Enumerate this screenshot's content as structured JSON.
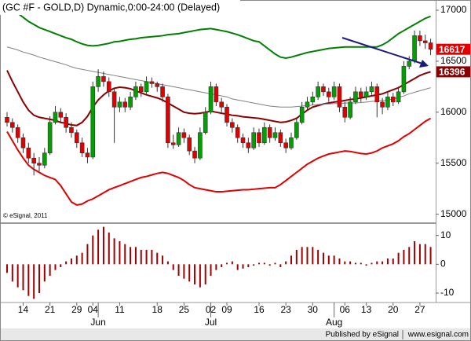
{
  "title": "(GC #F - GOLD,D) Dynamic,0:00-24:00 (Delayed)",
  "footer": [
    "Published by eSignal",
    "www.esignal.com"
  ],
  "chart_data": [
    {
      "type": "candlestick",
      "watermark": "© eSignal, 2011",
      "up_color": "#00a000",
      "down_color": "#e00000",
      "ylim": [
        14920,
        17100
      ],
      "yticks": [
        15000,
        15500,
        16000,
        16500,
        17000
      ],
      "categories": [
        null,
        null,
        null,
        "14",
        null,
        null,
        null,
        null,
        "21",
        null,
        null,
        null,
        null,
        "29",
        null,
        null,
        "04",
        null,
        null,
        null,
        null,
        "11",
        null,
        null,
        null,
        null,
        null,
        null,
        "18",
        null,
        null,
        null,
        null,
        "25",
        null,
        null,
        null,
        null,
        "02",
        null,
        null,
        "09",
        null,
        null,
        null,
        null,
        null,
        "16",
        null,
        null,
        null,
        null,
        "23",
        null,
        null,
        null,
        null,
        "30",
        null,
        null,
        null,
        null,
        null,
        "06",
        null,
        null,
        null,
        "13",
        null,
        null,
        null,
        null,
        "20",
        null,
        null,
        null,
        null,
        "27",
        null,
        null
      ],
      "months": [
        null,
        null,
        null,
        null,
        null,
        null,
        null,
        null,
        null,
        null,
        null,
        null,
        null,
        null,
        null,
        null,
        null,
        "Jun",
        null,
        null,
        null,
        null,
        null,
        null,
        null,
        null,
        null,
        null,
        null,
        null,
        null,
        null,
        null,
        null,
        null,
        null,
        null,
        null,
        "Jul",
        null,
        null,
        null,
        null,
        null,
        null,
        null,
        null,
        null,
        null,
        null,
        null,
        null,
        null,
        null,
        null,
        null,
        null,
        null,
        null,
        null,
        null,
        "Aug",
        null,
        null,
        null,
        null,
        null,
        null,
        null,
        null,
        null,
        null,
        null,
        null,
        null,
        null,
        null,
        null,
        null,
        null
      ],
      "ohlc": [
        [
          15950,
          16000,
          15860,
          15900
        ],
        [
          15900,
          15940,
          15800,
          15850
        ],
        [
          15850,
          15880,
          15700,
          15750
        ],
        [
          15750,
          15790,
          15600,
          15650
        ],
        [
          15650,
          15700,
          15500,
          15550
        ],
        [
          15550,
          15600,
          15380,
          15500
        ],
        [
          15500,
          15560,
          15420,
          15480
        ],
        [
          15480,
          15650,
          15450,
          15600
        ],
        [
          15600,
          15960,
          15580,
          15900
        ],
        [
          15900,
          16060,
          15880,
          16000
        ],
        [
          16000,
          16040,
          15900,
          15950
        ],
        [
          15950,
          15990,
          15800,
          15850
        ],
        [
          15850,
          15900,
          15750,
          15800
        ],
        [
          15800,
          15830,
          15650,
          15700
        ],
        [
          15700,
          15750,
          15560,
          15600
        ],
        [
          15600,
          15650,
          15500,
          15560
        ],
        [
          15560,
          16300,
          15540,
          16250
        ],
        [
          16250,
          16420,
          16200,
          16350
        ],
        [
          16350,
          16400,
          16250,
          16300
        ],
        [
          16300,
          16340,
          16150,
          16200
        ],
        [
          16200,
          16240,
          15700,
          16050
        ],
        [
          16050,
          16150,
          16000,
          16100
        ],
        [
          16100,
          16140,
          16000,
          16050
        ],
        [
          16050,
          16200,
          16020,
          16150
        ],
        [
          16150,
          16300,
          16120,
          16250
        ],
        [
          16250,
          16280,
          16150,
          16200
        ],
        [
          16200,
          16350,
          16180,
          16300
        ],
        [
          16300,
          16340,
          16240,
          16280
        ],
        [
          16280,
          16300,
          16200,
          16250
        ],
        [
          16250,
          16280,
          16100,
          16150
        ],
        [
          16150,
          16180,
          15650,
          15700
        ],
        [
          15700,
          15780,
          15640,
          15680
        ],
        [
          15680,
          15850,
          15660,
          15800
        ],
        [
          15800,
          15840,
          15700,
          15750
        ],
        [
          15750,
          15780,
          15580,
          15620
        ],
        [
          15620,
          15660,
          15500,
          15550
        ],
        [
          15550,
          15850,
          15530,
          15800
        ],
        [
          15800,
          16050,
          15780,
          16000
        ],
        [
          16000,
          16300,
          15980,
          16250
        ],
        [
          16250,
          16280,
          16060,
          16100
        ],
        [
          16100,
          16140,
          16000,
          16050
        ],
        [
          16050,
          16080,
          15860,
          15900
        ],
        [
          15900,
          15940,
          15800,
          15850
        ],
        [
          15850,
          15880,
          15700,
          15750
        ],
        [
          15750,
          15790,
          15650,
          15700
        ],
        [
          15700,
          15750,
          15600,
          15650
        ],
        [
          15650,
          15850,
          15630,
          15800
        ],
        [
          15800,
          15840,
          15660,
          15700
        ],
        [
          15700,
          15900,
          15680,
          15850
        ],
        [
          15850,
          15880,
          15700,
          15750
        ],
        [
          15750,
          15850,
          15720,
          15800
        ],
        [
          15800,
          15830,
          15660,
          15700
        ],
        [
          15700,
          15740,
          15600,
          15650
        ],
        [
          15650,
          15800,
          15630,
          15750
        ],
        [
          15750,
          15950,
          15730,
          15900
        ],
        [
          15900,
          16100,
          15880,
          16050
        ],
        [
          16050,
          16150,
          16020,
          16100
        ],
        [
          16100,
          16200,
          16070,
          16150
        ],
        [
          16150,
          16300,
          16120,
          16250
        ],
        [
          16250,
          16280,
          16160,
          16200
        ],
        [
          16200,
          16240,
          16100,
          16150
        ],
        [
          16150,
          16300,
          16120,
          16250
        ],
        [
          16250,
          16280,
          16000,
          16050
        ],
        [
          16050,
          16100,
          15900,
          15950
        ],
        [
          15950,
          16150,
          15930,
          16100
        ],
        [
          16100,
          16250,
          16080,
          16200
        ],
        [
          16200,
          16240,
          16100,
          16150
        ],
        [
          16150,
          16250,
          16120,
          16200
        ],
        [
          16200,
          16300,
          16170,
          16250
        ],
        [
          16250,
          16280,
          15950,
          16100
        ],
        [
          16100,
          16140,
          15980,
          16050
        ],
        [
          16050,
          16200,
          16020,
          16150
        ],
        [
          16150,
          16190,
          16060,
          16100
        ],
        [
          16100,
          16250,
          16080,
          16200
        ],
        [
          16200,
          16500,
          16180,
          16450
        ],
        [
          16450,
          16550,
          16420,
          16500
        ],
        [
          16500,
          16800,
          16480,
          16750
        ],
        [
          16750,
          16800,
          16650,
          16700
        ],
        [
          16700,
          16760,
          16620,
          16680
        ],
        [
          16680,
          16720,
          16560,
          16617
        ]
      ],
      "lines": [
        {
          "color": "#008000",
          "values": [
            17045,
            17010,
            16970,
            16930,
            16890,
            16860,
            16830,
            16810,
            16790,
            16770,
            16750,
            16730,
            16715,
            16690,
            16670,
            16655,
            16650,
            16655,
            16665,
            16675,
            16690,
            16695,
            16705,
            16715,
            16720,
            16730,
            16735,
            16740,
            16745,
            16750,
            16760,
            16765,
            16770,
            16780,
            16790,
            16800,
            16810,
            16815,
            16820,
            16810,
            16800,
            16790,
            16775,
            16760,
            16740,
            16720,
            16700,
            16690,
            16650,
            16610,
            16570,
            16540,
            16530,
            16540,
            16555,
            16570,
            16585,
            16595,
            16605,
            16615,
            16625,
            16630,
            16635,
            16640,
            16640,
            16640,
            16640,
            16640,
            16640,
            16640,
            16660,
            16690,
            16730,
            16770,
            16800,
            16830,
            16860,
            16890,
            16920,
            16940
          ]
        },
        {
          "color": "#e00000",
          "values": [
            15810,
            15720,
            15630,
            15550,
            15480,
            15440,
            15410,
            15380,
            15360,
            15340,
            15280,
            15200,
            15120,
            15090,
            15100,
            15130,
            15150,
            15180,
            15210,
            15240,
            15260,
            15280,
            15300,
            15320,
            15340,
            15360,
            15370,
            15385,
            15400,
            15410,
            15400,
            15380,
            15360,
            15330,
            15290,
            15260,
            15250,
            15240,
            15230,
            15220,
            15220,
            15225,
            15230,
            15235,
            15240,
            15240,
            15245,
            15250,
            15255,
            15260,
            15260,
            15290,
            15330,
            15370,
            15410,
            15450,
            15490,
            15520,
            15550,
            15570,
            15590,
            15600,
            15610,
            15620,
            15615,
            15605,
            15595,
            15590,
            15600,
            15620,
            15650,
            15670,
            15690,
            15720,
            15760,
            15790,
            15830,
            15870,
            15910,
            15940
          ]
        },
        {
          "color": "#8b0000",
          "values": [
            16410,
            16300,
            16200,
            16100,
            16020,
            15970,
            15950,
            15940,
            15930,
            15920,
            15900,
            15890,
            15875,
            15870,
            15900,
            15960,
            16050,
            16120,
            16170,
            16210,
            16235,
            16245,
            16240,
            16230,
            16210,
            16190,
            16170,
            16155,
            16140,
            16120,
            16090,
            16060,
            16030,
            16000,
            15990,
            15985,
            15990,
            16000,
            16010,
            16000,
            15990,
            15980,
            15970,
            15965,
            15955,
            15950,
            15945,
            15940,
            15930,
            15920,
            15910,
            15900,
            15905,
            15920,
            15940,
            15980,
            16020,
            16050,
            16065,
            16080,
            16090,
            16100,
            16105,
            16115,
            16125,
            16130,
            16140,
            16150,
            16160,
            16170,
            16180,
            16200,
            16220,
            16240,
            16270,
            16300,
            16330,
            16360,
            16380,
            16396
          ]
        },
        {
          "color": "#808080",
          "values": [
            16640,
            16625,
            16610,
            16590,
            16575,
            16560,
            16540,
            16525,
            16510,
            16495,
            16480,
            16465,
            16445,
            16430,
            16420,
            16410,
            16400,
            16390,
            16380,
            16370,
            16360,
            16350,
            16340,
            16330,
            16320,
            16310,
            16300,
            16290,
            16280,
            16270,
            16260,
            16250,
            16240,
            16230,
            16220,
            16210,
            16200,
            16190,
            16180,
            16170,
            16160,
            16150,
            16130,
            16120,
            16110,
            16100,
            16090,
            16080,
            16070,
            16060,
            16055,
            16050,
            16050,
            16050,
            16055,
            16060,
            16065,
            16070,
            16075,
            16080,
            16080,
            16085,
            16085,
            16090,
            16090,
            16090,
            16095,
            16100,
            16105,
            16110,
            16115,
            16120,
            16130,
            16145,
            16160,
            16180,
            16195,
            16210,
            16225,
            16240
          ]
        }
      ]
    },
    {
      "type": "bar",
      "color": "#a00000",
      "ylim": [
        -13,
        14
      ],
      "yticks": [
        10,
        0,
        -10
      ],
      "values": [
        -3,
        -6,
        -8,
        -9,
        -11,
        -12,
        -10,
        -6,
        -4,
        -2,
        -1,
        1,
        2,
        3,
        4,
        7,
        10,
        12,
        13,
        11,
        9,
        8,
        7,
        6,
        6,
        5,
        5,
        5,
        4,
        3,
        1,
        -2,
        -4,
        -5,
        -6,
        -7,
        -8,
        -7,
        -4,
        -2,
        -1,
        0.5,
        1,
        -2,
        -1.5,
        -1,
        -0.5,
        0.5,
        0.5,
        -0.5,
        0.5,
        -1,
        1,
        3,
        5,
        6,
        6,
        6,
        5,
        4,
        3,
        3,
        2,
        1,
        1,
        0.5,
        0.5,
        -0.5,
        0.5,
        1,
        1,
        2,
        2,
        4,
        5,
        6,
        8,
        7,
        7,
        6
      ]
    }
  ]
}
